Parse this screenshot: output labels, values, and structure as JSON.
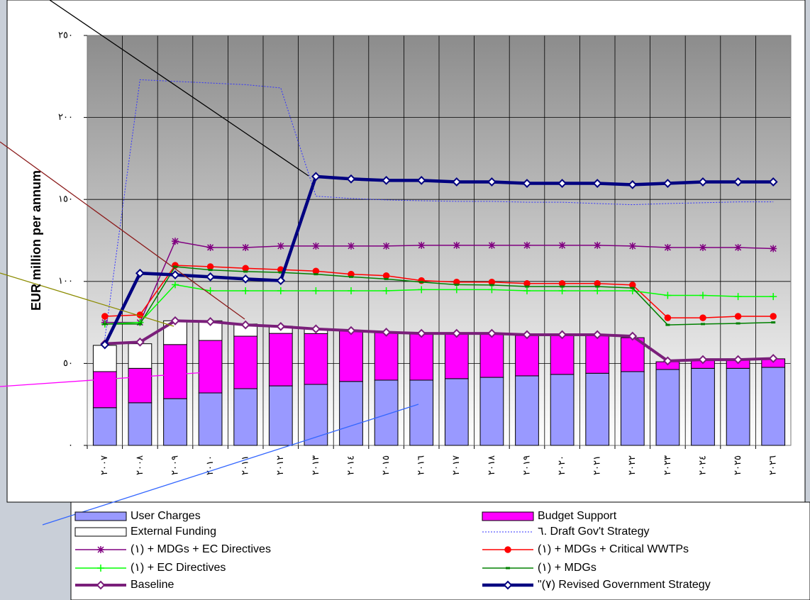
{
  "chart_data": {
    "type": "combo",
    "ylabel": "EUR million per annum",
    "categories": [
      "٢٠٠٧",
      "٢٠٠٨",
      "٢٠٠٩",
      "٢٠١٠",
      "٢٠١١",
      "٢٠١٢",
      "٢٠١٣",
      "٢٠١٤",
      "٢٠١٥",
      "٢٠١٦",
      "٢٠١٧",
      "٢٠١٨",
      "٢٠١٩",
      "٢٠٢٠",
      "٢٠٢١",
      "٢٠٢٢",
      "٢٠٢٣",
      "٢٠٢٤",
      "٢٠٢٥",
      "٢٠٢٦"
    ],
    "ylim": [
      0,
      250
    ],
    "yticks": [
      {
        "value": 0,
        "label": "٠"
      },
      {
        "value": 50,
        "label": "٥٠"
      },
      {
        "value": 100,
        "label": "١٠٠"
      },
      {
        "value": 150,
        "label": "١٥٠"
      },
      {
        "value": 200,
        "label": "٢٠٠"
      },
      {
        "value": 250,
        "label": "٢٥٠"
      }
    ],
    "grid": true,
    "series": [
      {
        "name": "User Charges",
        "type": "bar",
        "color": "#9999ff",
        "values": [
          23,
          26,
          28.5,
          32,
          34.6,
          36.3,
          37.2,
          39,
          39.8,
          39.8,
          40.7,
          41.5,
          42.4,
          43.3,
          44,
          45,
          46.3,
          47,
          47,
          47.6
        ]
      },
      {
        "name": "Budget Support",
        "type": "bar",
        "color": "#ff00ff",
        "values": [
          22,
          21,
          33,
          32,
          32,
          32,
          31,
          31,
          29.4,
          28.5,
          27,
          26.5,
          24.6,
          24,
          23,
          20.7,
          4.7,
          5.3,
          5.8,
          5.2
        ]
      },
      {
        "name": "External Funding",
        "type": "bar",
        "color": "#ffffff",
        "values": [
          16,
          15,
          14.5,
          12,
          7.4,
          4.4,
          3,
          0,
          0,
          0,
          0,
          0,
          0,
          0,
          0,
          0,
          0,
          0,
          0,
          0
        ]
      },
      {
        "name": "٦. Draft Gov't Strategy",
        "type": "line",
        "color": "#3333ff",
        "width": 1,
        "dash": true,
        "marker": "none",
        "values": [
          65,
          223,
          222,
          221,
          220,
          218,
          152,
          150.6,
          149.7,
          149.2,
          148.8,
          148.8,
          148.3,
          148.3,
          147.5,
          146.8,
          147.5,
          148,
          148.5,
          148.5
        ]
      },
      {
        "name": "(١) + MDGs + EC Directives",
        "type": "line",
        "color": "#800080",
        "width": 1.5,
        "marker": "star",
        "values": [
          75,
          75,
          124.5,
          120.7,
          120.7,
          121.6,
          121.6,
          121.6,
          121.6,
          122,
          122,
          122,
          122,
          122,
          122,
          121.6,
          120.7,
          120.7,
          120.7,
          120
        ]
      },
      {
        "name": "(١) + MDGs + Critical WWTPs",
        "type": "line",
        "color": "#ff0000",
        "width": 1.5,
        "marker": "circle",
        "values": [
          78.7,
          79.6,
          109.8,
          109,
          108,
          107.2,
          106.3,
          104.4,
          103.5,
          100.5,
          99.6,
          99.6,
          98.7,
          98.7,
          98.7,
          97.8,
          77.8,
          77.8,
          78.7,
          78.7
        ]
      },
      {
        "name": "(١) + EC Directives",
        "type": "line",
        "color": "#00ff00",
        "width": 1.5,
        "marker": "plus",
        "values": [
          74,
          75,
          98,
          94.3,
          94.3,
          94.3,
          94.3,
          94.3,
          94.3,
          95,
          95,
          95,
          94.3,
          94.3,
          94.3,
          94.3,
          91.5,
          91.5,
          90.8,
          90.8
        ]
      },
      {
        "name": "(١) + MDGs",
        "type": "line",
        "color": "#008000",
        "width": 1.5,
        "marker": "dash",
        "values": [
          74,
          74,
          109,
          107,
          106,
          105.5,
          104.4,
          102.8,
          101.5,
          99.6,
          98,
          97.8,
          96.9,
          96.9,
          96.9,
          96,
          73.5,
          74,
          74.4,
          75
        ]
      },
      {
        "name": "Baseline",
        "type": "line",
        "color": "#7a1f7a",
        "width": 4,
        "marker": "diamond",
        "values": [
          62,
          63,
          76,
          75.5,
          73.5,
          72.5,
          71,
          70,
          69,
          68.3,
          68.3,
          68.3,
          67.5,
          67.5,
          67.5,
          66.6,
          51.5,
          52.3,
          52.3,
          53
        ]
      },
      {
        "name": "\"(٧) Revised Government Strategy",
        "type": "line",
        "color": "#000080",
        "width": 4.5,
        "marker": "diamond",
        "values": [
          61.4,
          105,
          104,
          102.8,
          101.5,
          100.5,
          164,
          162.5,
          161.6,
          161.6,
          160.7,
          160.7,
          159.8,
          159.8,
          159.8,
          159,
          159.8,
          160.7,
          160.7,
          160.7
        ]
      }
    ]
  }
}
